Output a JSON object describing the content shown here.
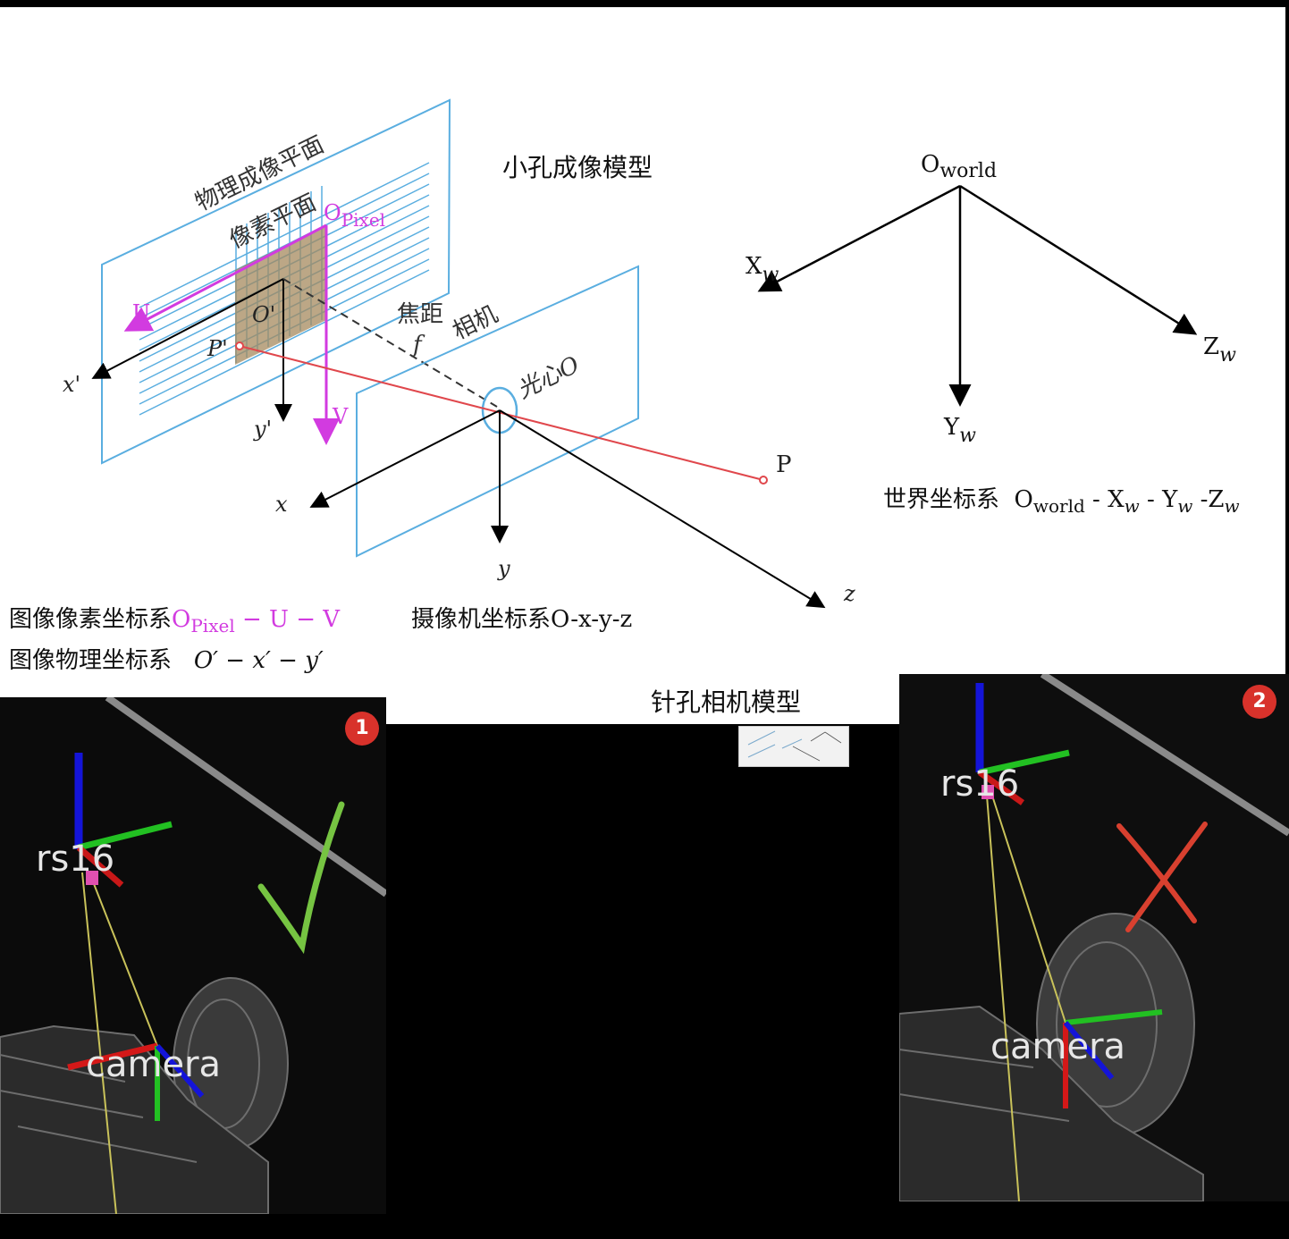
{
  "diagram": {
    "title_small_hole": "小孔成像模型",
    "physical_plane": "物理成像平面",
    "pixel_plane": "像素平面",
    "pixel_origin": "O",
    "pixel_origin_sub": "Pixel",
    "axis_U": "U",
    "axis_V": "V",
    "o_prime": "O'",
    "p_prime": "P'",
    "x_prime": "x'",
    "y_prime": "y'",
    "focal": "焦距",
    "focal_f": "f",
    "camera_plane": "相机",
    "optical_center": "光心O",
    "point_P": "P",
    "axis_x": "x",
    "axis_y": "y",
    "axis_z": "z",
    "world_origin": "O",
    "world_origin_sub": "world",
    "world_X": "X",
    "world_Y": "Y",
    "world_Z": "Z",
    "w_sub": "w"
  },
  "captions": {
    "pixel_coord_prefix": "图像像素坐标系",
    "pixel_coord_formula_O": "O",
    "pixel_coord_formula_sub": "Pixel",
    "pixel_coord_formula_rest": " − U − V",
    "physical_coord": "图像物理坐标系",
    "physical_coord_formula": "O′ − x′ − y′",
    "camera_coord": "摄像机坐标系O-x-y-z",
    "world_coord_prefix": "世界坐标系",
    "world_coord_O": "O",
    "world_coord_sub": "world",
    "world_coord_rest": " - X",
    "world_coord_rest2": " - Y",
    "world_coord_rest3": " -Z",
    "pinhole_title": "针孔相机模型"
  },
  "panels": [
    {
      "badge": "1",
      "frame_top": "rs16",
      "frame_bottom": "camera",
      "verdict": "check"
    },
    {
      "badge": "2",
      "frame_top": "rs16",
      "frame_bottom": "camera",
      "verdict": "cross"
    }
  ],
  "colors": {
    "plane_blue": "#5aaee0",
    "magenta": "#d23be0",
    "ray_red": "#e0474c",
    "pixel_grid": "#a58a5e",
    "check_green": "#76c442",
    "cross_red": "#d8402f",
    "badge_red": "#d8322b"
  }
}
